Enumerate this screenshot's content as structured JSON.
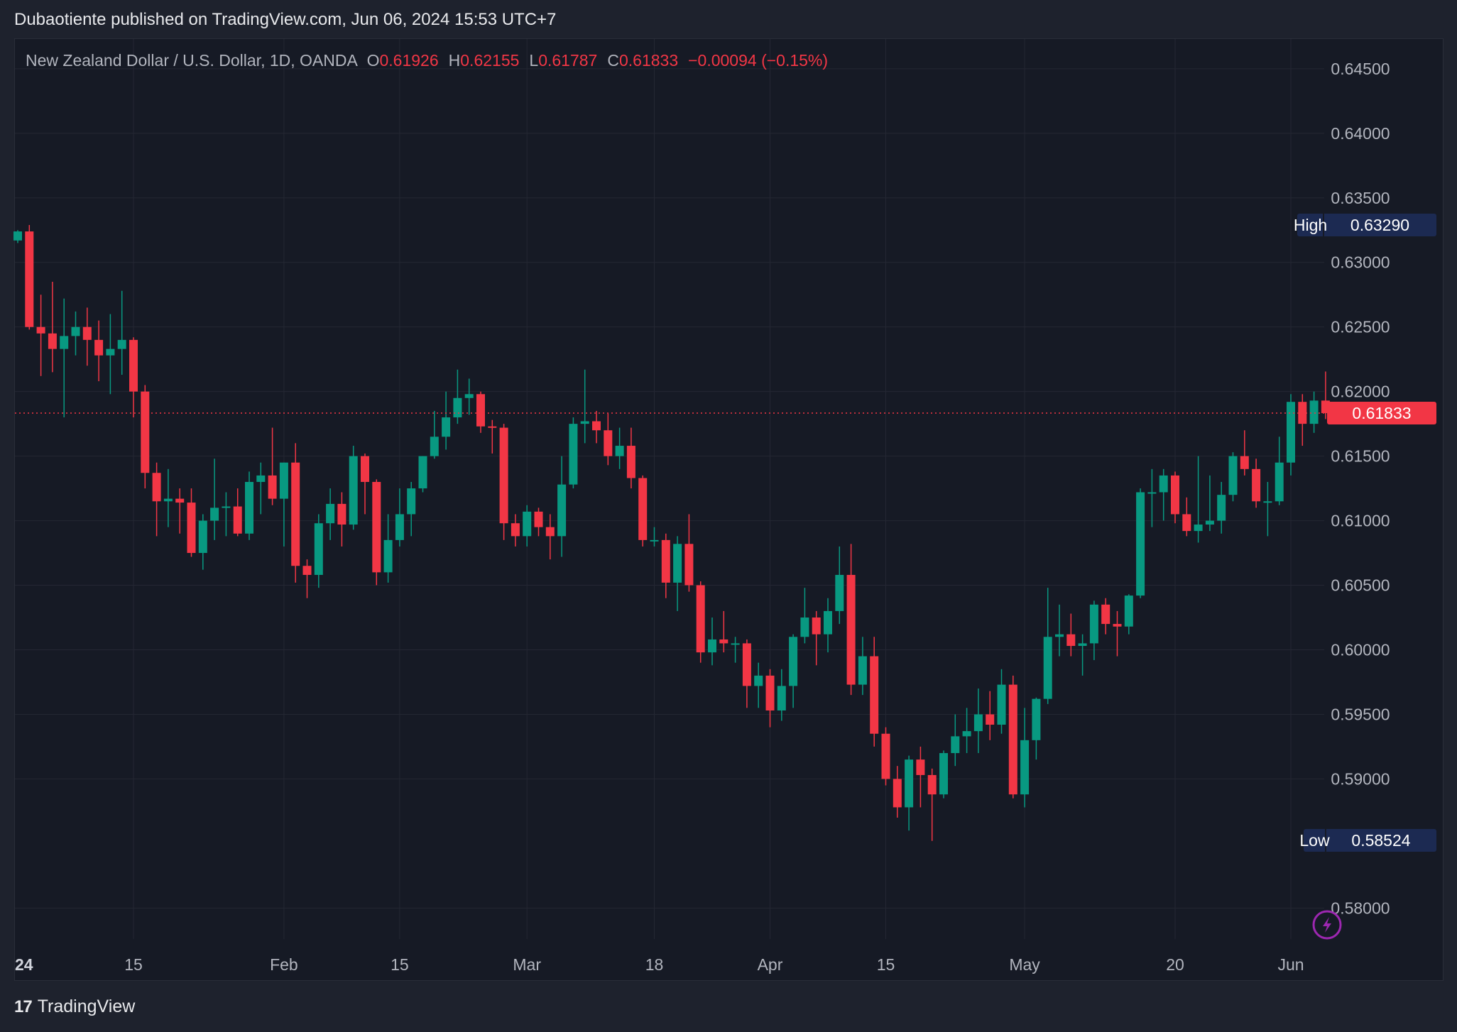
{
  "header": {
    "published": "Dubaotiente published on TradingView.com, Jun 06, 2024 15:53 UTC+7"
  },
  "legend": {
    "symbol": "New Zealand Dollar / U.S. Dollar, 1D, OANDA",
    "o_label": "O",
    "o_value": "0.61926",
    "h_label": "H",
    "h_value": "0.62155",
    "l_label": "L",
    "l_value": "0.61787",
    "c_label": "C",
    "c_value": "0.61833",
    "change": "−0.00094 (−0.15%)"
  },
  "markers": {
    "high_label": "High",
    "high_value": "0.63290",
    "low_label": "Low",
    "low_value": "0.58524",
    "last_value": "0.61833"
  },
  "footer": {
    "brand": "TradingView",
    "logo_glyph": "17"
  },
  "colors": {
    "up": "#089981",
    "down": "#f23645",
    "background": "#161a25",
    "grid": "#242733",
    "high_low_box": "#1c2a52"
  },
  "chart_data": {
    "type": "candlestick",
    "y_ticks": [
      "0.64500",
      "0.64000",
      "0.63500",
      "0.63000",
      "0.62500",
      "0.62000",
      "0.61500",
      "0.61000",
      "0.60500",
      "0.60000",
      "0.59500",
      "0.59000",
      "0.58000"
    ],
    "x_ticks": [
      {
        "label": "24",
        "bold": true,
        "i": 0
      },
      {
        "label": "15",
        "i": 10
      },
      {
        "label": "Feb",
        "i": 23
      },
      {
        "label": "15",
        "i": 33
      },
      {
        "label": "Mar",
        "i": 44
      },
      {
        "label": "18",
        "i": 55
      },
      {
        "label": "Apr",
        "i": 65
      },
      {
        "label": "15",
        "i": 75
      },
      {
        "label": "May",
        "i": 87
      },
      {
        "label": "20",
        "i": 100
      },
      {
        "label": "Jun",
        "i": 110
      }
    ],
    "ylim": [
      0.5776,
      0.6473
    ],
    "last_price": 0.61833,
    "high": 0.6329,
    "low": 0.58524,
    "candles": [
      {
        "o": 0.6317,
        "h": 0.6325,
        "l": 0.6315,
        "c": 0.6324
      },
      {
        "o": 0.6324,
        "h": 0.6329,
        "l": 0.6248,
        "c": 0.625
      },
      {
        "o": 0.625,
        "h": 0.6275,
        "l": 0.6212,
        "c": 0.6245
      },
      {
        "o": 0.6245,
        "h": 0.6285,
        "l": 0.6215,
        "c": 0.6233
      },
      {
        "o": 0.6233,
        "h": 0.6272,
        "l": 0.618,
        "c": 0.6243
      },
      {
        "o": 0.6243,
        "h": 0.6262,
        "l": 0.6228,
        "c": 0.625
      },
      {
        "o": 0.625,
        "h": 0.6265,
        "l": 0.622,
        "c": 0.624
      },
      {
        "o": 0.624,
        "h": 0.6255,
        "l": 0.6208,
        "c": 0.6228
      },
      {
        "o": 0.6228,
        "h": 0.626,
        "l": 0.6198,
        "c": 0.6233
      },
      {
        "o": 0.6233,
        "h": 0.6278,
        "l": 0.6213,
        "c": 0.624
      },
      {
        "o": 0.624,
        "h": 0.6242,
        "l": 0.618,
        "c": 0.62
      },
      {
        "o": 0.62,
        "h": 0.6205,
        "l": 0.6125,
        "c": 0.6137
      },
      {
        "o": 0.6137,
        "h": 0.6145,
        "l": 0.6088,
        "c": 0.6115
      },
      {
        "o": 0.6115,
        "h": 0.614,
        "l": 0.6095,
        "c": 0.6117
      },
      {
        "o": 0.6117,
        "h": 0.6125,
        "l": 0.609,
        "c": 0.6114
      },
      {
        "o": 0.6114,
        "h": 0.6125,
        "l": 0.6072,
        "c": 0.6075
      },
      {
        "o": 0.6075,
        "h": 0.6105,
        "l": 0.6062,
        "c": 0.61
      },
      {
        "o": 0.61,
        "h": 0.6148,
        "l": 0.6085,
        "c": 0.611
      },
      {
        "o": 0.611,
        "h": 0.6122,
        "l": 0.6088,
        "c": 0.6111
      },
      {
        "o": 0.6111,
        "h": 0.6125,
        "l": 0.6088,
        "c": 0.609
      },
      {
        "o": 0.609,
        "h": 0.6138,
        "l": 0.6085,
        "c": 0.613
      },
      {
        "o": 0.613,
        "h": 0.6145,
        "l": 0.6105,
        "c": 0.6135
      },
      {
        "o": 0.6135,
        "h": 0.6172,
        "l": 0.6112,
        "c": 0.6117
      },
      {
        "o": 0.6117,
        "h": 0.6145,
        "l": 0.608,
        "c": 0.6145
      },
      {
        "o": 0.6145,
        "h": 0.616,
        "l": 0.6052,
        "c": 0.6065
      },
      {
        "o": 0.6065,
        "h": 0.607,
        "l": 0.604,
        "c": 0.6058
      },
      {
        "o": 0.6058,
        "h": 0.6105,
        "l": 0.6048,
        "c": 0.6098
      },
      {
        "o": 0.6098,
        "h": 0.6125,
        "l": 0.6085,
        "c": 0.6113
      },
      {
        "o": 0.6113,
        "h": 0.6122,
        "l": 0.608,
        "c": 0.6097
      },
      {
        "o": 0.6097,
        "h": 0.6158,
        "l": 0.6093,
        "c": 0.615
      },
      {
        "o": 0.615,
        "h": 0.6152,
        "l": 0.6105,
        "c": 0.613
      },
      {
        "o": 0.613,
        "h": 0.6132,
        "l": 0.605,
        "c": 0.606
      },
      {
        "o": 0.606,
        "h": 0.6105,
        "l": 0.6052,
        "c": 0.6085
      },
      {
        "o": 0.6085,
        "h": 0.6125,
        "l": 0.608,
        "c": 0.6105
      },
      {
        "o": 0.6105,
        "h": 0.613,
        "l": 0.6088,
        "c": 0.6125
      },
      {
        "o": 0.6125,
        "h": 0.615,
        "l": 0.6122,
        "c": 0.615
      },
      {
        "o": 0.615,
        "h": 0.6185,
        "l": 0.6148,
        "c": 0.6165
      },
      {
        "o": 0.6165,
        "h": 0.62,
        "l": 0.6155,
        "c": 0.618
      },
      {
        "o": 0.618,
        "h": 0.6217,
        "l": 0.6175,
        "c": 0.6195
      },
      {
        "o": 0.6195,
        "h": 0.621,
        "l": 0.6182,
        "c": 0.6198
      },
      {
        "o": 0.6198,
        "h": 0.62,
        "l": 0.6168,
        "c": 0.6173
      },
      {
        "o": 0.6173,
        "h": 0.6178,
        "l": 0.6152,
        "c": 0.6172
      },
      {
        "o": 0.6172,
        "h": 0.6175,
        "l": 0.6085,
        "c": 0.6098
      },
      {
        "o": 0.6098,
        "h": 0.6105,
        "l": 0.608,
        "c": 0.6088
      },
      {
        "o": 0.6088,
        "h": 0.6112,
        "l": 0.608,
        "c": 0.6107
      },
      {
        "o": 0.6107,
        "h": 0.611,
        "l": 0.6088,
        "c": 0.6095
      },
      {
        "o": 0.6095,
        "h": 0.6105,
        "l": 0.607,
        "c": 0.6088
      },
      {
        "o": 0.6088,
        "h": 0.615,
        "l": 0.6072,
        "c": 0.6128
      },
      {
        "o": 0.6128,
        "h": 0.618,
        "l": 0.6125,
        "c": 0.6175
      },
      {
        "o": 0.6175,
        "h": 0.6217,
        "l": 0.616,
        "c": 0.6177
      },
      {
        "o": 0.6177,
        "h": 0.6185,
        "l": 0.616,
        "c": 0.617
      },
      {
        "o": 0.617,
        "h": 0.6183,
        "l": 0.6143,
        "c": 0.615
      },
      {
        "o": 0.615,
        "h": 0.6172,
        "l": 0.614,
        "c": 0.6158
      },
      {
        "o": 0.6158,
        "h": 0.6172,
        "l": 0.6125,
        "c": 0.6133
      },
      {
        "o": 0.6133,
        "h": 0.6135,
        "l": 0.608,
        "c": 0.6085
      },
      {
        "o": 0.6085,
        "h": 0.6095,
        "l": 0.608,
        "c": 0.6085
      },
      {
        "o": 0.6085,
        "h": 0.609,
        "l": 0.604,
        "c": 0.6052
      },
      {
        "o": 0.6052,
        "h": 0.6088,
        "l": 0.603,
        "c": 0.6082
      },
      {
        "o": 0.6082,
        "h": 0.6105,
        "l": 0.6045,
        "c": 0.605
      },
      {
        "o": 0.605,
        "h": 0.6053,
        "l": 0.599,
        "c": 0.5998
      },
      {
        "o": 0.5998,
        "h": 0.6025,
        "l": 0.5988,
        "c": 0.6008
      },
      {
        "o": 0.6008,
        "h": 0.603,
        "l": 0.5998,
        "c": 0.6005
      },
      {
        "o": 0.6005,
        "h": 0.601,
        "l": 0.599,
        "c": 0.6005
      },
      {
        "o": 0.6005,
        "h": 0.6008,
        "l": 0.5955,
        "c": 0.5972
      },
      {
        "o": 0.5972,
        "h": 0.599,
        "l": 0.5955,
        "c": 0.598
      },
      {
        "o": 0.598,
        "h": 0.5985,
        "l": 0.594,
        "c": 0.5953
      },
      {
        "o": 0.5953,
        "h": 0.5985,
        "l": 0.5945,
        "c": 0.5972
      },
      {
        "o": 0.5972,
        "h": 0.6012,
        "l": 0.5955,
        "c": 0.601
      },
      {
        "o": 0.601,
        "h": 0.6048,
        "l": 0.6005,
        "c": 0.6025
      },
      {
        "o": 0.6025,
        "h": 0.603,
        "l": 0.5988,
        "c": 0.6012
      },
      {
        "o": 0.6012,
        "h": 0.604,
        "l": 0.5998,
        "c": 0.603
      },
      {
        "o": 0.603,
        "h": 0.608,
        "l": 0.602,
        "c": 0.6058
      },
      {
        "o": 0.6058,
        "h": 0.6082,
        "l": 0.5965,
        "c": 0.5973
      },
      {
        "o": 0.5973,
        "h": 0.601,
        "l": 0.5965,
        "c": 0.5995
      },
      {
        "o": 0.5995,
        "h": 0.601,
        "l": 0.5925,
        "c": 0.5935
      },
      {
        "o": 0.5935,
        "h": 0.594,
        "l": 0.5895,
        "c": 0.59
      },
      {
        "o": 0.59,
        "h": 0.591,
        "l": 0.587,
        "c": 0.5878
      },
      {
        "o": 0.5878,
        "h": 0.5918,
        "l": 0.586,
        "c": 0.5915
      },
      {
        "o": 0.5915,
        "h": 0.5925,
        "l": 0.5878,
        "c": 0.5903
      },
      {
        "o": 0.5903,
        "h": 0.5908,
        "l": 0.5852,
        "c": 0.5888
      },
      {
        "o": 0.5888,
        "h": 0.5922,
        "l": 0.5885,
        "c": 0.592
      },
      {
        "o": 0.592,
        "h": 0.595,
        "l": 0.591,
        "c": 0.5933
      },
      {
        "o": 0.5933,
        "h": 0.5955,
        "l": 0.592,
        "c": 0.5937
      },
      {
        "o": 0.5937,
        "h": 0.597,
        "l": 0.592,
        "c": 0.595
      },
      {
        "o": 0.595,
        "h": 0.5968,
        "l": 0.593,
        "c": 0.5942
      },
      {
        "o": 0.5942,
        "h": 0.5985,
        "l": 0.5935,
        "c": 0.5973
      },
      {
        "o": 0.5973,
        "h": 0.598,
        "l": 0.5885,
        "c": 0.5888
      },
      {
        "o": 0.5888,
        "h": 0.5955,
        "l": 0.5878,
        "c": 0.593
      },
      {
        "o": 0.593,
        "h": 0.5963,
        "l": 0.5915,
        "c": 0.5962
      },
      {
        "o": 0.5962,
        "h": 0.6048,
        "l": 0.5958,
        "c": 0.601
      },
      {
        "o": 0.601,
        "h": 0.6035,
        "l": 0.5995,
        "c": 0.6012
      },
      {
        "o": 0.6012,
        "h": 0.6028,
        "l": 0.5995,
        "c": 0.6003
      },
      {
        "o": 0.6003,
        "h": 0.6012,
        "l": 0.598,
        "c": 0.6005
      },
      {
        "o": 0.6005,
        "h": 0.6038,
        "l": 0.5992,
        "c": 0.6035
      },
      {
        "o": 0.6035,
        "h": 0.604,
        "l": 0.6012,
        "c": 0.602
      },
      {
        "o": 0.602,
        "h": 0.603,
        "l": 0.5995,
        "c": 0.6018
      },
      {
        "o": 0.6018,
        "h": 0.6043,
        "l": 0.6012,
        "c": 0.6042
      },
      {
        "o": 0.6042,
        "h": 0.6125,
        "l": 0.604,
        "c": 0.6122
      },
      {
        "o": 0.6122,
        "h": 0.614,
        "l": 0.6095,
        "c": 0.6122
      },
      {
        "o": 0.6122,
        "h": 0.614,
        "l": 0.61,
        "c": 0.6135
      },
      {
        "o": 0.6135,
        "h": 0.6138,
        "l": 0.6098,
        "c": 0.6105
      },
      {
        "o": 0.6105,
        "h": 0.6118,
        "l": 0.6088,
        "c": 0.6092
      },
      {
        "o": 0.6092,
        "h": 0.615,
        "l": 0.6083,
        "c": 0.6097
      },
      {
        "o": 0.6097,
        "h": 0.6135,
        "l": 0.6092,
        "c": 0.61
      },
      {
        "o": 0.61,
        "h": 0.613,
        "l": 0.609,
        "c": 0.612
      },
      {
        "o": 0.612,
        "h": 0.6153,
        "l": 0.6115,
        "c": 0.615
      },
      {
        "o": 0.615,
        "h": 0.617,
        "l": 0.6135,
        "c": 0.614
      },
      {
        "o": 0.614,
        "h": 0.6148,
        "l": 0.611,
        "c": 0.6115
      },
      {
        "o": 0.6115,
        "h": 0.613,
        "l": 0.6088,
        "c": 0.6115
      },
      {
        "o": 0.6115,
        "h": 0.6165,
        "l": 0.6112,
        "c": 0.6145
      },
      {
        "o": 0.6145,
        "h": 0.6198,
        "l": 0.6135,
        "c": 0.6192
      },
      {
        "o": 0.6192,
        "h": 0.6198,
        "l": 0.6158,
        "c": 0.6175
      },
      {
        "o": 0.6175,
        "h": 0.62,
        "l": 0.6168,
        "c": 0.6193
      },
      {
        "o": 0.6193,
        "h": 0.62155,
        "l": 0.61787,
        "c": 0.61833
      }
    ]
  }
}
